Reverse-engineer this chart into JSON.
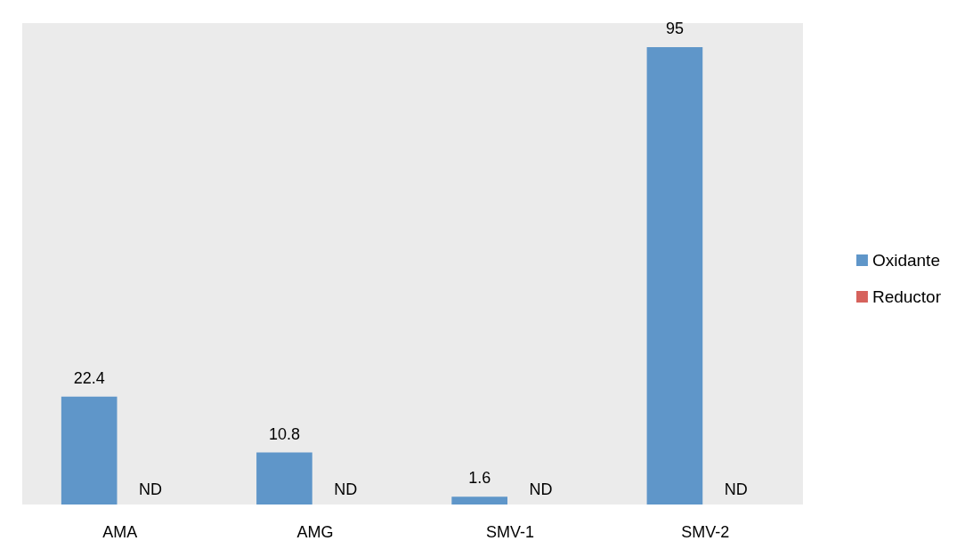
{
  "chart_data": {
    "type": "bar",
    "categories": [
      "AMA",
      "AMG",
      "SMV-1",
      "SMV-2"
    ],
    "series": [
      {
        "name": "Oxidante",
        "color": "#5f96c9",
        "values": [
          22.4,
          10.8,
          1.6,
          95
        ],
        "value_labels": [
          "22.4",
          "10.8",
          "1.6",
          "95"
        ]
      },
      {
        "name": "Reductor",
        "color": "#d6625c",
        "values": [
          null,
          null,
          null,
          null
        ],
        "value_labels": [
          "ND",
          "ND",
          "ND",
          "ND"
        ]
      }
    ],
    "legend": "right"
  }
}
